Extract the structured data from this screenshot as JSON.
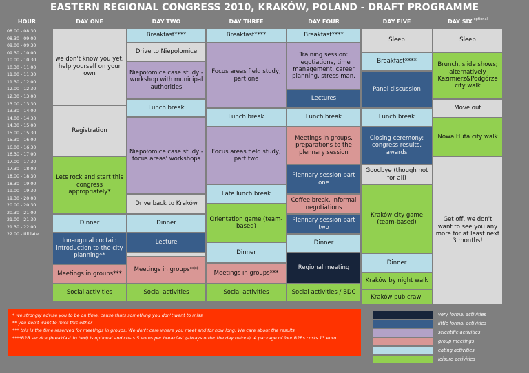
{
  "title": "EASTERN REGIONAL CONGRESS 2010, KRAKÓW, POLAND - DRAFT PROGRAMME",
  "headers": {
    "hour": "HOUR",
    "day1": "DAY ONE",
    "day2": "DAY TWO",
    "day3": "DAY THREE",
    "day4": "DAY FOUR",
    "day5": "DAY FIVE",
    "day6": "DAY SIX",
    "day6_note": "optional"
  },
  "times": [
    "08.00 - 08.30",
    "08.30 - 09.00",
    "09.00 - 09.30",
    "09.30 - 10.00",
    "10.00 - 10.30",
    "10.30 - 11.00",
    "11.00 - 11.30",
    "11.30 - 12.00",
    "12.00 - 12.30",
    "12.30 - 13.00",
    "13.00 - 13.30",
    "13.30 - 14.00",
    "14.00 - 14.30",
    "14.30 - 15.00",
    "15.00 - 15.30",
    "15.30 - 16.00",
    "16.00 - 16.30",
    "16.30 - 17.00",
    "17.00 - 17.30",
    "17.30 - 18.00",
    "18.00 - 18.30",
    "18.30 - 19.00",
    "19.00 - 19.30",
    "19.30 - 20.00",
    "20.00 - 20.30",
    "20.30 - 21.00",
    "21.00 - 21.30",
    "21.30 - 22.00",
    "22.00 - till late"
  ],
  "events": {
    "d1_unknown": "we don't know you yet, help yourself on your own",
    "d1_registration": "Registration",
    "d1_letsrock": "Lets rock and start this congress appropriately*",
    "d1_dinner": "Dinner",
    "d1_cocktail": "Innaugural coctail: introduction to the city planning**",
    "d1_meetings": "Meetings in groups***",
    "d1_social": "Social activities",
    "d2_breakfast": "Breakfast****",
    "d2_drive": "Drive to Niepolomice",
    "d2_case1": "Niepołomice case study - workshop with municipal authorities",
    "d2_lunch": "Lunch break",
    "d2_case2": "Niepołomice case study - focus areas' workshops",
    "d2_driveback": "Drive back to Kraków",
    "d2_dinner": "Dinner",
    "d2_lecture": "Lecture",
    "d2_meetings": "Meetings in groups***",
    "d2_social": "Social activities",
    "d3_breakfast": "Breakfast****",
    "d3_focus1": "Focus areas field study, part one",
    "d3_lunch": "Lunch break",
    "d3_focus2": "Focus areas field study, part two",
    "d3_latelunch": "Late lunch break",
    "d3_orientation": "Orientation game (team-based)",
    "d3_dinner": "Dinner",
    "d3_meetings": "Meetings in groups***",
    "d3_social": "Social activities",
    "d4_breakfast": "Breakfast****",
    "d4_training": "Training session: negotiations, time management, career planning, stress man.",
    "d4_lectures": "Lectures",
    "d4_lunch": "Lunch break",
    "d4_meetings": "Meetings in groups, preparations to the plennary session",
    "d4_plen1": "Plennary session part one",
    "d4_coffee": "Coffee break, informal negotiations",
    "d4_plen2": "Plennary session part two",
    "d4_dinner": "Dinner",
    "d4_regional": "Regional meeting",
    "d4_social": "Social activities / BDC",
    "d5_sleep": "Sleep",
    "d5_breakfast": "Breakfast****",
    "d5_panel": "Panel discussion",
    "d5_lunch": "Lunch break",
    "d5_closing": "Closing ceremony: congress results, awards",
    "d5_goodbye": "Goodbye (though not for all)",
    "d5_game": "Kraków city game (team-based)",
    "d5_dinner": "Dinner",
    "d5_nightwalk": "Kraków by night walk",
    "d5_pubcrawl": "Kraków pub crawl",
    "d6_sleep": "Sleep",
    "d6_brunch": "Brunch, slide shows; alternatively Kazimierz&Podgórze city walk",
    "d6_moveout": "Move out",
    "d6_nowahuta": "Nowa Huta city walk",
    "d6_getoff": "Get off, we don't want to see you any more for at least next 3 months!"
  },
  "notes": [
    "* we strongly advise you to be on time, cause thats something you don't want to miss",
    "** you don't want to miss this either",
    "*** this is the time reserved for meetings in groups. We don't care where you meet and for how long. We care about the results",
    "****B2B service (breakfast to bed) is optional and costs 5 euros per breakfast (always order the day before). A package of four B2Bs costs 13 euro"
  ],
  "legend": [
    {
      "label": "very formal activities",
      "color": "#17243a"
    },
    {
      "label": "little formal activities",
      "color": "#385d8a"
    },
    {
      "label": "scientific activities",
      "color": "#b3a2c7"
    },
    {
      "label": "group meetings",
      "color": "#d99795"
    },
    {
      "label": "eating activities",
      "color": "#b7dde8"
    },
    {
      "label": "leisure activities",
      "color": "#92d050"
    }
  ],
  "colors": {
    "background": "#7f7f7f",
    "free": "#d9d9d9",
    "notes_bg": "#ff3300"
  }
}
